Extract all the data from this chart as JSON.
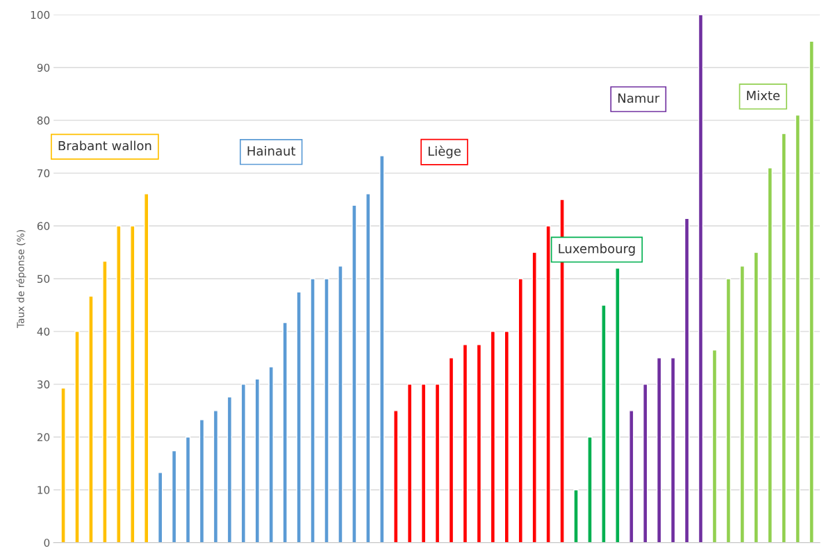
{
  "chart_data": {
    "type": "bar",
    "ylabel": "Taux de réponse (%)",
    "categories": [
      null,
      null,
      null,
      null,
      null,
      null,
      null,
      null,
      null,
      null,
      null,
      null,
      null,
      null,
      null,
      null,
      null,
      null,
      null,
      null,
      null,
      null,
      null,
      null,
      null,
      null,
      null,
      null,
      null,
      null,
      null,
      null,
      null,
      null,
      null,
      null,
      null,
      null,
      null,
      null,
      null,
      null,
      null,
      null,
      null,
      null,
      null,
      null,
      null,
      null,
      null,
      null,
      null,
      null,
      null
    ],
    "series": [
      {
        "name": "Brabant wallon",
        "color": "#ffc000",
        "values": [
          29.3,
          40,
          46.7,
          53.3,
          60,
          60,
          66.1,
          null,
          null,
          null,
          null,
          null,
          null,
          null,
          null,
          null,
          null,
          null,
          null,
          null,
          null,
          null,
          null,
          null,
          null,
          null,
          null,
          null,
          null,
          null,
          null,
          null,
          null,
          null,
          null,
          null,
          null,
          null,
          null,
          null,
          null,
          null,
          null,
          null,
          null,
          null,
          null,
          null,
          null,
          null,
          null,
          null,
          null,
          null,
          null
        ]
      },
      {
        "name": "Hainaut",
        "color": "#5b9bd5",
        "values": [
          null,
          null,
          null,
          null,
          null,
          null,
          null,
          13.3,
          17.4,
          20,
          23.3,
          25,
          27.6,
          30,
          31,
          33.3,
          41.7,
          47.5,
          50,
          50,
          52.4,
          63.9,
          66.1,
          73.3,
          null,
          null,
          null,
          null,
          null,
          null,
          null,
          null,
          null,
          null,
          null,
          null,
          null,
          null,
          null,
          null,
          null,
          null,
          null,
          null,
          null,
          null,
          null,
          null,
          null,
          null,
          null,
          null,
          null,
          null,
          null
        ]
      },
      {
        "name": "Liège",
        "color": "#ff0000",
        "values": [
          null,
          null,
          null,
          null,
          null,
          null,
          null,
          null,
          null,
          null,
          null,
          null,
          null,
          null,
          null,
          null,
          null,
          null,
          null,
          null,
          null,
          null,
          null,
          null,
          25,
          30,
          30,
          30,
          35,
          37.5,
          37.5,
          40,
          40,
          50,
          55,
          60,
          65,
          null,
          null,
          null,
          null,
          null,
          null,
          null,
          null,
          null,
          null,
          null,
          null,
          null,
          null,
          null,
          null,
          null,
          null
        ]
      },
      {
        "name": "Luxembourg",
        "color": "#00b050",
        "values": [
          null,
          null,
          null,
          null,
          null,
          null,
          null,
          null,
          null,
          null,
          null,
          null,
          null,
          null,
          null,
          null,
          null,
          null,
          null,
          null,
          null,
          null,
          null,
          null,
          null,
          null,
          null,
          null,
          null,
          null,
          null,
          null,
          null,
          null,
          null,
          null,
          null,
          10,
          20,
          45,
          52,
          null,
          null,
          null,
          null,
          null,
          null,
          null,
          null,
          null,
          null,
          null,
          null,
          null,
          null
        ]
      },
      {
        "name": "Namur",
        "color": "#7030a0",
        "values": [
          null,
          null,
          null,
          null,
          null,
          null,
          null,
          null,
          null,
          null,
          null,
          null,
          null,
          null,
          null,
          null,
          null,
          null,
          null,
          null,
          null,
          null,
          null,
          null,
          null,
          null,
          null,
          null,
          null,
          null,
          null,
          null,
          null,
          null,
          null,
          null,
          null,
          null,
          null,
          null,
          null,
          25,
          30,
          35,
          35,
          61.4,
          100,
          null,
          null,
          null,
          null,
          null,
          null,
          null,
          null
        ]
      },
      {
        "name": "Mixte",
        "color": "#92d050",
        "values": [
          null,
          null,
          null,
          null,
          null,
          null,
          null,
          null,
          null,
          null,
          null,
          null,
          null,
          null,
          null,
          null,
          null,
          null,
          null,
          null,
          null,
          null,
          null,
          null,
          null,
          null,
          null,
          null,
          null,
          null,
          null,
          null,
          null,
          null,
          null,
          null,
          null,
          null,
          null,
          null,
          null,
          null,
          null,
          null,
          null,
          null,
          null,
          36.5,
          50,
          52.4,
          55,
          71,
          77.5,
          81,
          95
        ]
      }
    ],
    "ylim": [
      0,
      100
    ],
    "yticks": [
      0,
      10,
      20,
      30,
      40,
      50,
      60,
      70,
      80,
      90,
      100
    ],
    "grid": "y",
    "tick_labels": "y",
    "legend": false
  }
}
